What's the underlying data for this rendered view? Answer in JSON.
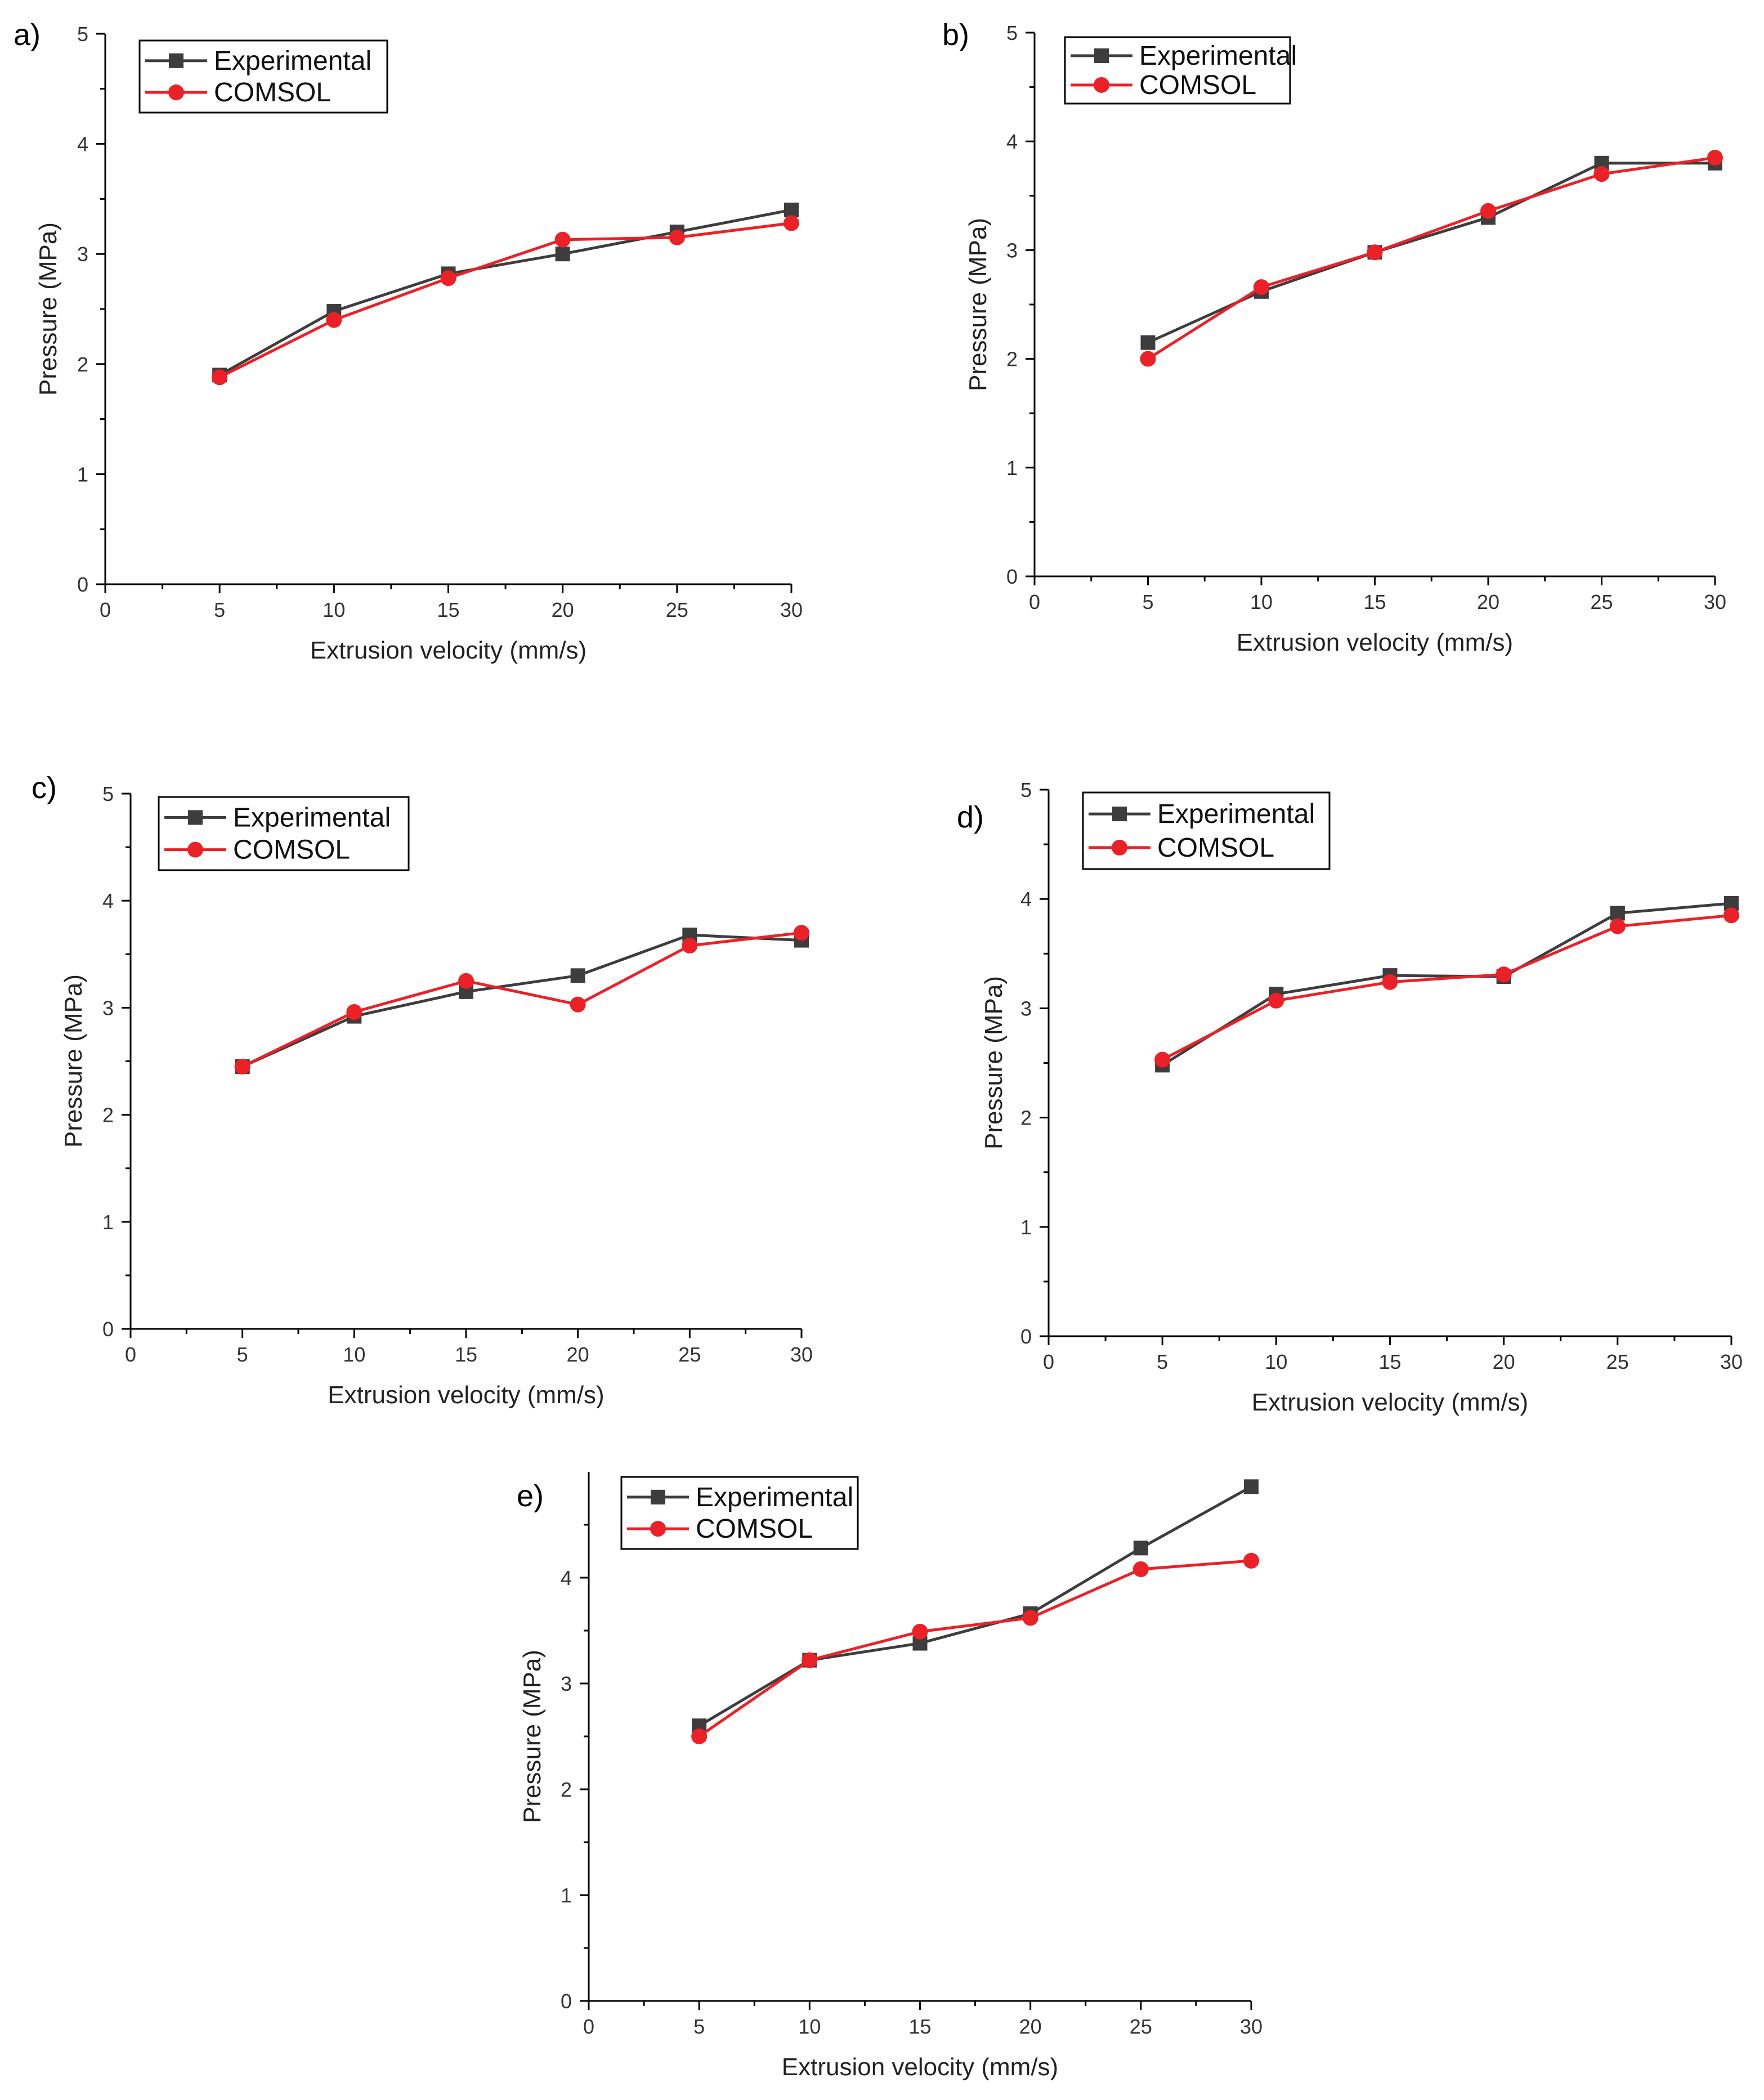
{
  "colors": {
    "experimental": "#3d3d3d",
    "comsol": "#ec2027",
    "axis": "#000000"
  },
  "chart_data": [
    {
      "panel": "a)",
      "type": "line",
      "xlabel": "Extrusion velocity (mm/s)",
      "ylabel": "Pressure (MPa)",
      "xlim": [
        0,
        30
      ],
      "ylim": [
        0,
        5
      ],
      "xticks": [
        0,
        5,
        10,
        15,
        20,
        25,
        30
      ],
      "yticks": [
        0,
        1,
        2,
        3,
        4,
        5
      ],
      "legend": "top-left",
      "series": [
        {
          "name": "Experimental",
          "marker": "square",
          "x": [
            5,
            10,
            15,
            20,
            25,
            30
          ],
          "values": [
            1.9,
            2.48,
            2.82,
            3.0,
            3.2,
            3.4
          ]
        },
        {
          "name": "COMSOL",
          "marker": "circle",
          "x": [
            5,
            10,
            15,
            20,
            25,
            30
          ],
          "values": [
            1.88,
            2.4,
            2.78,
            3.13,
            3.15,
            3.28
          ]
        }
      ]
    },
    {
      "panel": "b)",
      "type": "line",
      "xlabel": "Extrusion velocity (mm/s)",
      "ylabel": "Pressure (MPa)",
      "xlim": [
        0,
        30
      ],
      "ylim": [
        0,
        5
      ],
      "xticks": [
        0,
        5,
        10,
        15,
        20,
        25,
        30
      ],
      "yticks": [
        0,
        1,
        2,
        3,
        4,
        5
      ],
      "legend": "top-left",
      "series": [
        {
          "name": "Experimental",
          "marker": "square",
          "x": [
            5,
            10,
            15,
            20,
            25,
            30
          ],
          "values": [
            2.15,
            2.62,
            2.98,
            3.3,
            3.8,
            3.8
          ]
        },
        {
          "name": "COMSOL",
          "marker": "circle",
          "x": [
            5,
            10,
            15,
            20,
            25,
            30
          ],
          "values": [
            2.0,
            2.66,
            2.98,
            3.36,
            3.7,
            3.85
          ]
        }
      ]
    },
    {
      "panel": "c)",
      "type": "line",
      "xlabel": "Extrusion velocity (mm/s)",
      "ylabel": "Pressure (MPa)",
      "xlim": [
        0,
        30
      ],
      "ylim": [
        0,
        5
      ],
      "xticks": [
        0,
        5,
        10,
        15,
        20,
        25,
        30
      ],
      "yticks": [
        0,
        1,
        2,
        3,
        4,
        5
      ],
      "legend": "top-left",
      "series": [
        {
          "name": "Experimental",
          "marker": "square",
          "x": [
            5,
            10,
            15,
            20,
            25,
            30
          ],
          "values": [
            2.45,
            2.92,
            3.15,
            3.3,
            3.68,
            3.63
          ]
        },
        {
          "name": "COMSOL",
          "marker": "circle",
          "x": [
            5,
            10,
            15,
            20,
            25,
            30
          ],
          "values": [
            2.45,
            2.96,
            3.25,
            3.03,
            3.58,
            3.7
          ]
        }
      ]
    },
    {
      "panel": "d)",
      "type": "line",
      "xlabel": "Extrusion velocity (mm/s)",
      "ylabel": "Pressure (MPa)",
      "xlim": [
        0,
        30
      ],
      "ylim": [
        0,
        5
      ],
      "xticks": [
        0,
        5,
        10,
        15,
        20,
        25,
        30
      ],
      "yticks": [
        0,
        1,
        2,
        3,
        4,
        5
      ],
      "legend": "top-left",
      "series": [
        {
          "name": "Experimental",
          "marker": "square",
          "x": [
            5,
            10,
            15,
            20,
            25,
            30
          ],
          "values": [
            2.48,
            3.13,
            3.3,
            3.29,
            3.87,
            3.96
          ]
        },
        {
          "name": "COMSOL",
          "marker": "circle",
          "x": [
            5,
            10,
            15,
            20,
            25,
            30
          ],
          "values": [
            2.53,
            3.07,
            3.24,
            3.31,
            3.75,
            3.85
          ]
        }
      ]
    },
    {
      "panel": "e)",
      "type": "line",
      "xlabel": "Extrusion velocity (mm/s)",
      "ylabel": "Pressure (MPa)",
      "xlim": [
        0,
        30
      ],
      "ylim": [
        0,
        5
      ],
      "xticks": [
        0,
        5,
        10,
        15,
        20,
        25,
        30
      ],
      "yticks": [
        0,
        1,
        2,
        3,
        4
      ],
      "legend": "top-left",
      "series": [
        {
          "name": "Experimental",
          "marker": "square",
          "x": [
            5,
            10,
            15,
            20,
            25,
            30
          ],
          "values": [
            2.6,
            3.22,
            3.38,
            3.66,
            4.28,
            4.86
          ]
        },
        {
          "name": "COMSOL",
          "marker": "circle",
          "x": [
            5,
            10,
            15,
            20,
            25,
            30
          ],
          "values": [
            2.5,
            3.22,
            3.49,
            3.62,
            4.08,
            4.16
          ]
        }
      ]
    }
  ]
}
